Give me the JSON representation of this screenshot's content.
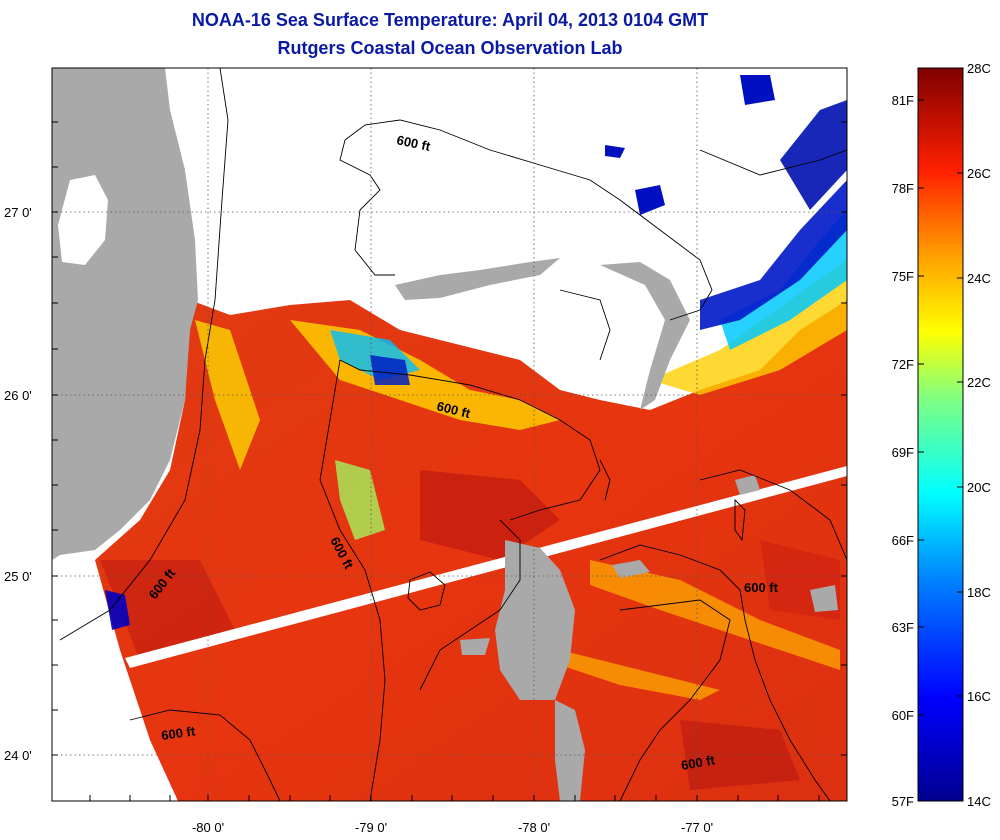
{
  "title": {
    "line1": "NOAA-16 Sea Surface Temperature:  April 04, 2013 0104 GMT",
    "line2": "Rutgers Coastal Ocean Observation Lab"
  },
  "map": {
    "lon_ticks": [
      "-80 0'",
      "-79 0'",
      "-78 0'",
      "-77 0'"
    ],
    "lat_ticks": [
      "27 0'",
      "26 0'",
      "25 0'",
      "24 0'"
    ],
    "contour_labels": [
      "600 ft",
      "600 ft",
      "600 ft",
      "600 ft",
      "600 ft",
      "600 ft"
    ],
    "colors": {
      "land": "#a9a9a9",
      "cloud": "#ffffff",
      "warm_water": "#e8300e",
      "hot_water": "#c81010"
    }
  },
  "colorbar": {
    "celsius_labels": [
      "28C",
      "26C",
      "24C",
      "22C",
      "20C",
      "18C",
      "16C",
      "14C"
    ],
    "fahrenheit_labels": [
      "81F",
      "78F",
      "75F",
      "72F",
      "69F",
      "66F",
      "63F",
      "60F",
      "57F"
    ],
    "min_c": 14,
    "max_c": 28
  }
}
